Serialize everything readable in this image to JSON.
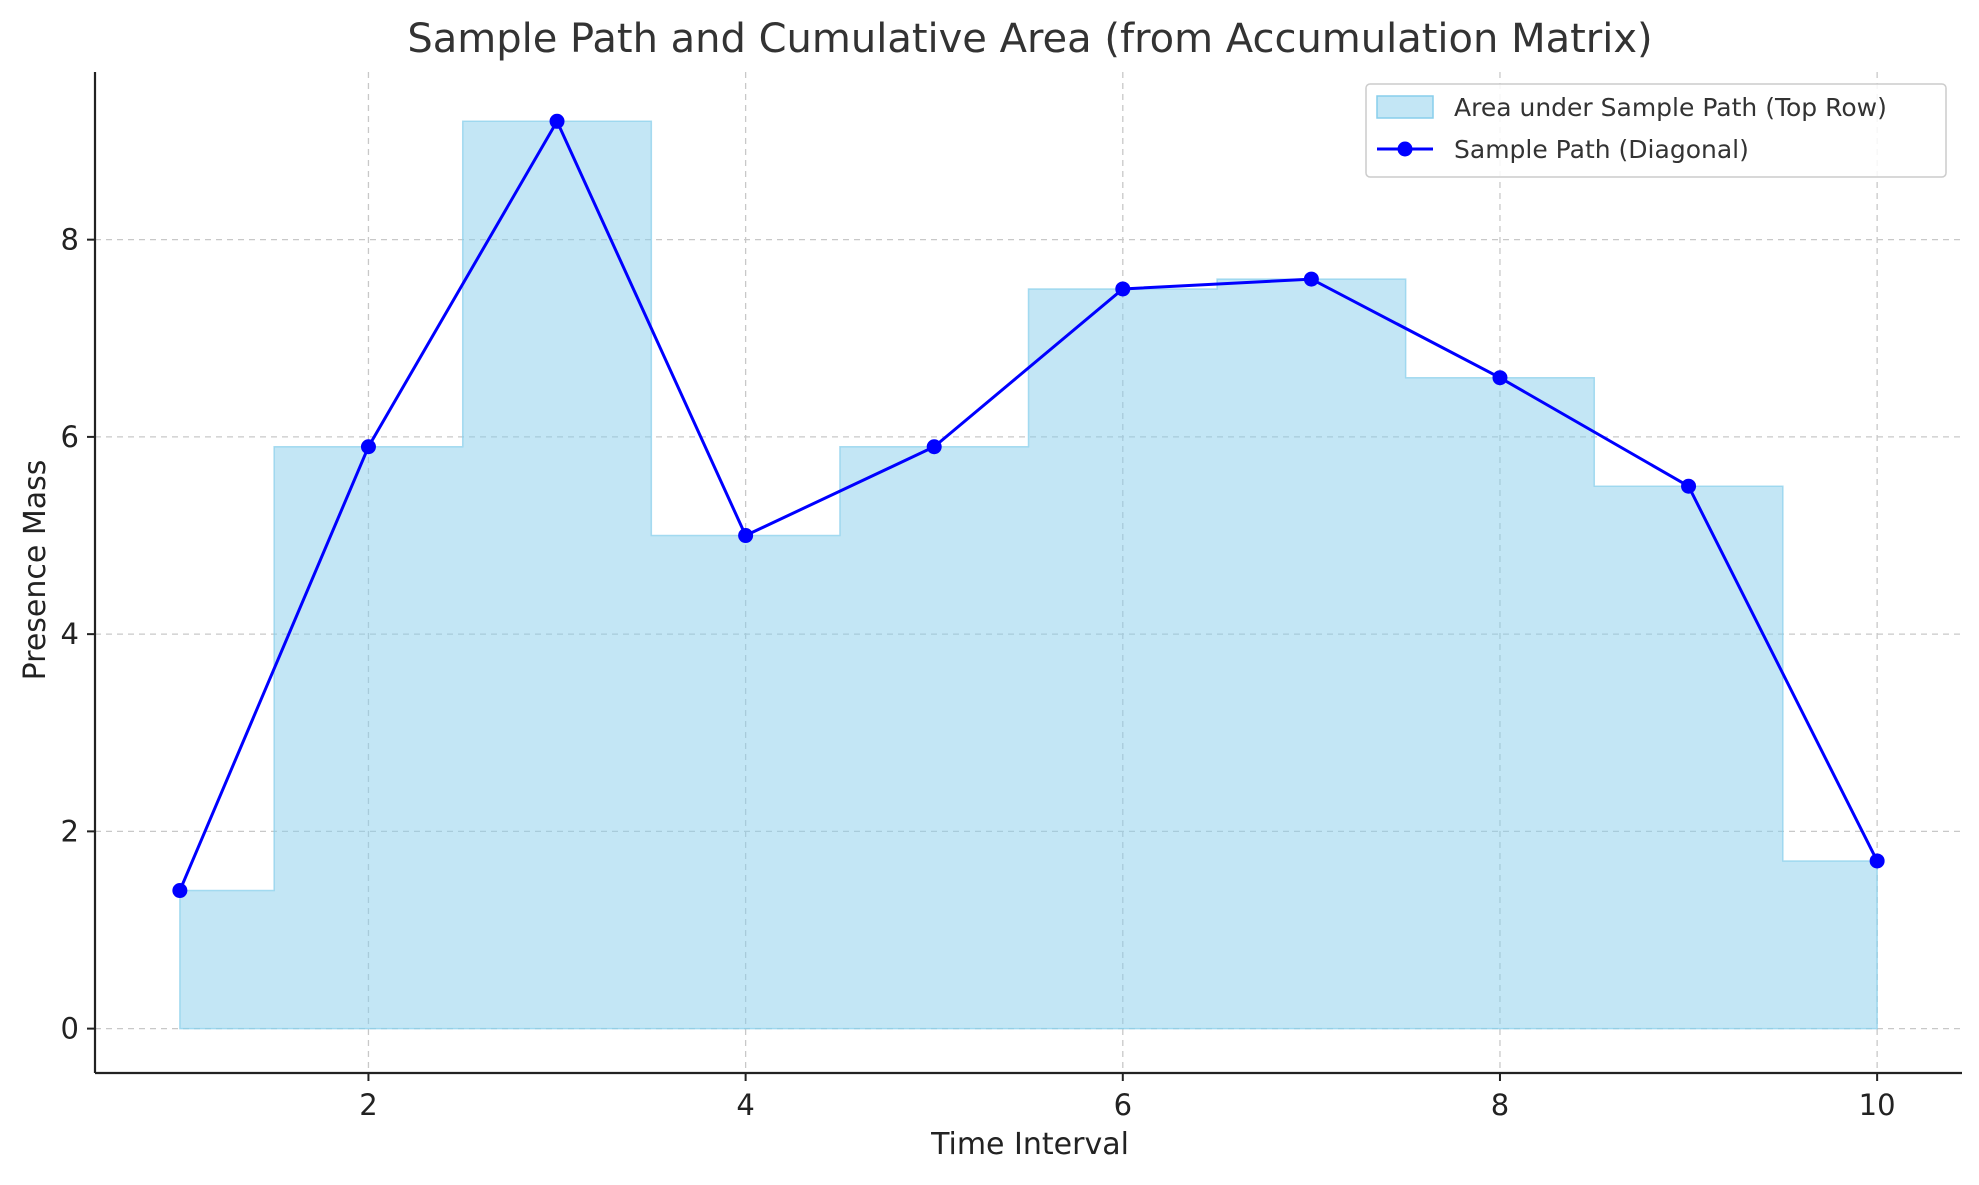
{
  "chart_data": {
    "type": "area",
    "title": "Sample Path and Cumulative Area (from Accumulation Matrix)",
    "xlabel": "Time Interval",
    "ylabel": "Presence Mass",
    "xlim": [
      0.55,
      10.45
    ],
    "ylim": [
      -0.45,
      9.7
    ],
    "x_ticks": [
      2,
      4,
      6,
      8,
      10
    ],
    "y_ticks": [
      0,
      2,
      4,
      6,
      8
    ],
    "grid": true,
    "legend_position": "top-right",
    "x": [
      1,
      2,
      3,
      4,
      5,
      6,
      7,
      8,
      9,
      10
    ],
    "series": [
      {
        "name": "Area under Sample Path (Top Row)",
        "kind": "step-area",
        "color": "#87ceeb",
        "values": [
          1.4,
          5.9,
          9.2,
          5.0,
          5.9,
          7.5,
          7.6,
          6.6,
          5.5,
          1.7
        ]
      },
      {
        "name": "Sample Path (Diagonal)",
        "kind": "line-marker",
        "color": "#0000ff",
        "values": [
          1.4,
          5.9,
          9.2,
          5.0,
          5.9,
          7.5,
          7.6,
          6.6,
          5.5,
          1.7
        ]
      }
    ]
  }
}
